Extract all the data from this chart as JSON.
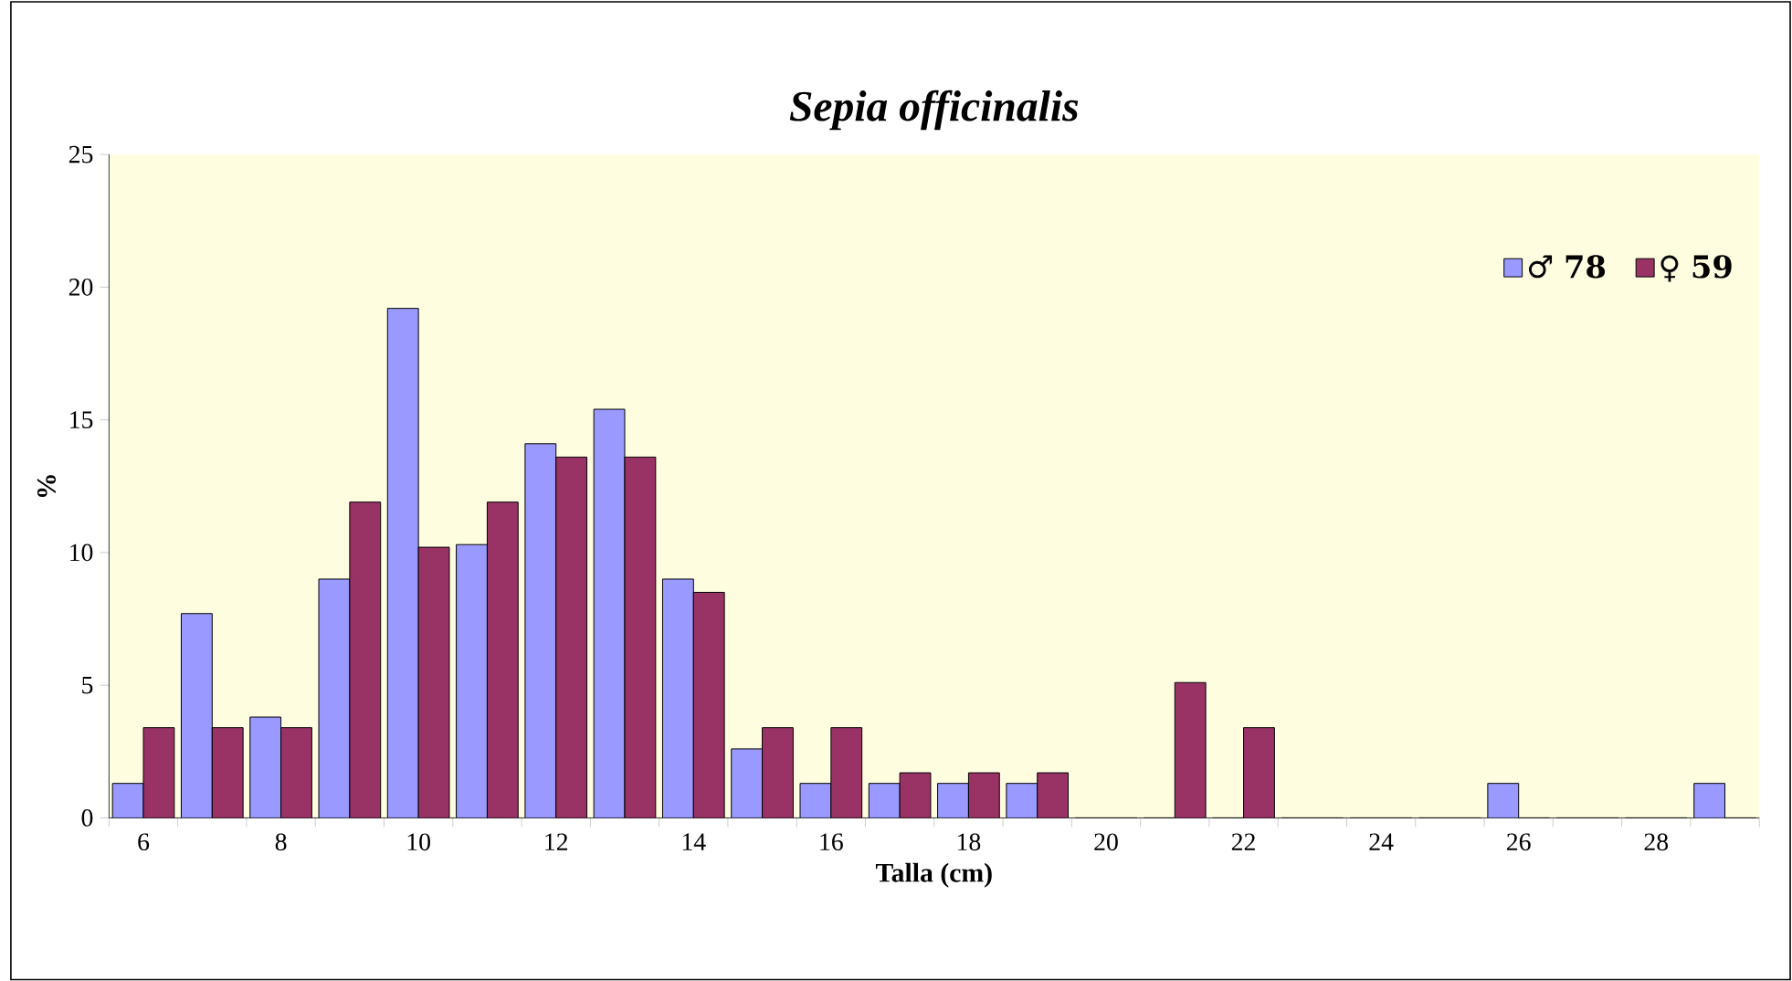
{
  "chart_data": {
    "type": "bar",
    "title": "*Sepia officinalis*",
    "xlabel": "Talla (cm)",
    "ylabel": "%",
    "categories": [
      "6",
      null,
      "8",
      null,
      "10",
      null,
      "12",
      null,
      "14",
      null,
      "16",
      null,
      "18",
      null,
      "20",
      null,
      "22",
      null,
      "24",
      null,
      "26",
      null,
      "28",
      null
    ],
    "series": [
      {
        "name": "♂ **78**",
        "color": "#9999ff",
        "values": [
          1.3,
          7.7,
          3.8,
          9.0,
          19.2,
          10.3,
          14.1,
          15.4,
          9.0,
          2.6,
          1.3,
          1.3,
          1.3,
          1.3,
          0,
          0,
          0,
          0,
          0,
          0,
          1.3,
          0,
          0,
          1.3
        ]
      },
      {
        "name": "♀ **59**",
        "color": "#993366",
        "values": [
          3.4,
          3.4,
          3.4,
          11.9,
          10.2,
          11.9,
          13.6,
          13.6,
          8.5,
          3.4,
          3.4,
          1.7,
          1.7,
          1.7,
          0,
          5.1,
          3.4,
          0,
          0,
          0,
          0,
          0,
          0,
          0
        ]
      }
    ],
    "ylim": [
      0,
      25
    ],
    "yticks": [
      0,
      5,
      10,
      15,
      20,
      25
    ],
    "grid": false,
    "legend": "top right"
  }
}
